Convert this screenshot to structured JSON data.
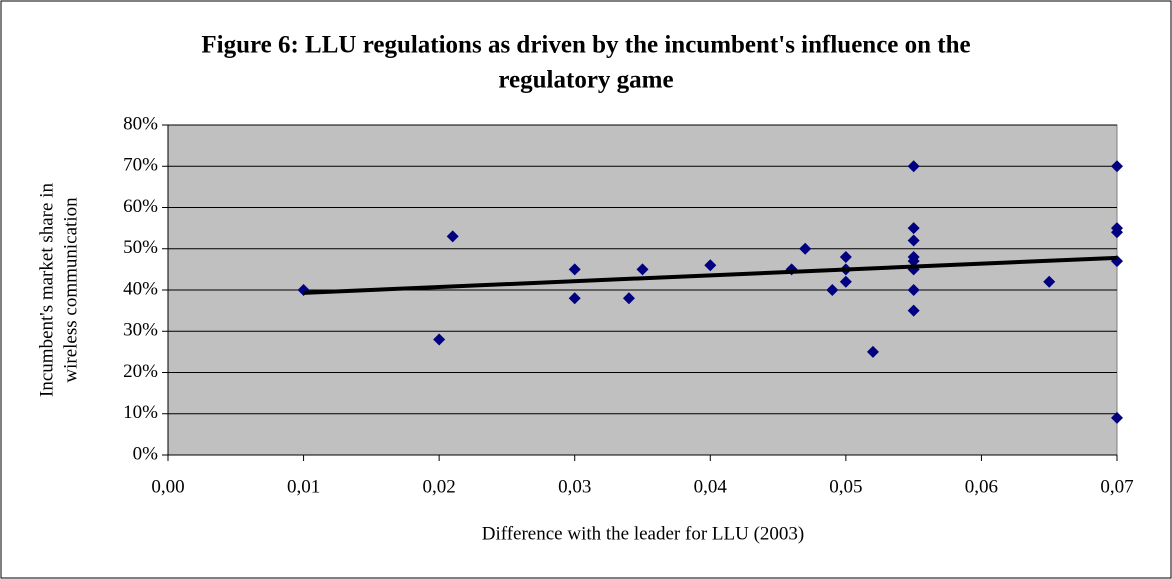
{
  "chart_data": {
    "type": "scatter",
    "title": [
      "Figure 6: LLU regulations as driven by the incumbent's influence on the",
      "regulatory game"
    ],
    "x_label": "Difference with the leader for LLU (2003)",
    "y_label": [
      "Incumbent's market share in",
      "wireless communication"
    ],
    "xlim": [
      0,
      0.07
    ],
    "xticks": [
      {
        "value": 0,
        "label": "0,00"
      },
      {
        "value": 0.01,
        "label": "0,01"
      },
      {
        "value": 0.02,
        "label": "0,02"
      },
      {
        "value": 0.03,
        "label": "0,03"
      },
      {
        "value": 0.04,
        "label": "0,04"
      },
      {
        "value": 0.05,
        "label": "0,05"
      },
      {
        "value": 0.06,
        "label": "0,06"
      },
      {
        "value": 0.07,
        "label": "0,07"
      }
    ],
    "ylim": [
      0,
      80
    ],
    "yticks": [
      {
        "value": 0,
        "label": "0%"
      },
      {
        "value": 10,
        "label": "10%"
      },
      {
        "value": 20,
        "label": "20%"
      },
      {
        "value": 30,
        "label": "30%"
      },
      {
        "value": 40,
        "label": "40%"
      },
      {
        "value": 50,
        "label": "50%"
      },
      {
        "value": 60,
        "label": "60%"
      },
      {
        "value": 70,
        "label": "70%"
      },
      {
        "value": 80,
        "label": "80%"
      }
    ],
    "grid": true,
    "plot_background": "#c0c0c0",
    "series": [
      {
        "color": "#000080",
        "x": [
          0.01,
          0.02,
          0.021,
          0.03,
          0.03,
          0.034,
          0.035,
          0.04,
          0.046,
          0.047,
          0.049,
          0.05,
          0.05,
          0.05,
          0.052,
          0.055,
          0.055,
          0.055,
          0.055,
          0.055,
          0.055,
          0.055,
          0.055,
          0.065,
          0.07,
          0.07,
          0.07,
          0.07,
          0.07
        ],
        "values": [
          40,
          28,
          53,
          45,
          38,
          38,
          45,
          46,
          45,
          50,
          40,
          48,
          45,
          42,
          25,
          70,
          55,
          52,
          48,
          47,
          45,
          40,
          35,
          42,
          70,
          55,
          54,
          47,
          9
        ]
      }
    ],
    "trendline": {
      "color": "#000000",
      "x": [
        0.01,
        0.07
      ],
      "values": [
        39.3,
        47.8
      ]
    }
  }
}
